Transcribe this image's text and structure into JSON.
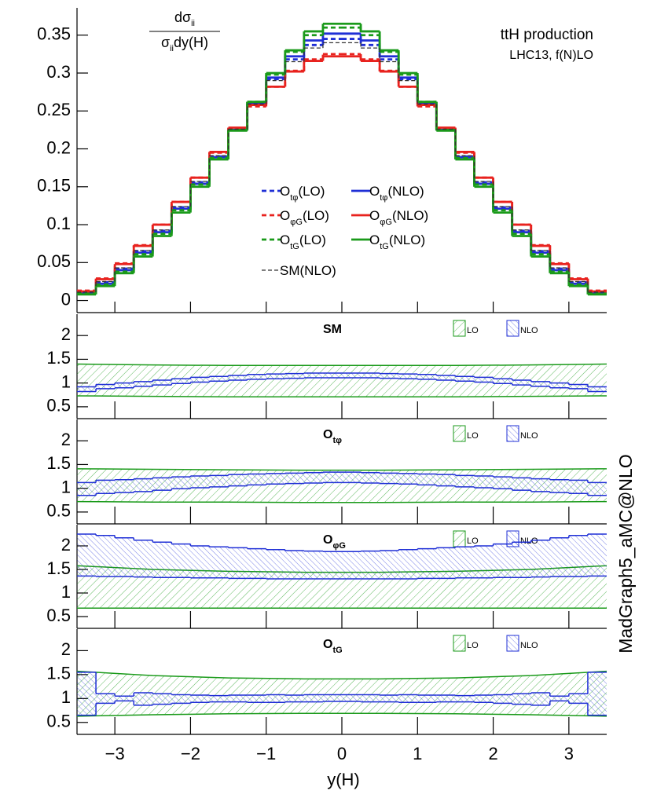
{
  "side_label": "MadGraph5_aMC@NLO",
  "chart_data": [
    {
      "type": "histogram",
      "ylabel": {
        "num": "dσ",
        "num_sub": "ii",
        "den": "σ",
        "den_sub": "ii",
        "den_rest": "dy(H)"
      },
      "annotations": [
        "ttH production",
        "LHC13, f(N)LO"
      ],
      "bins": [
        -3.5,
        -3.25,
        -3,
        -2.75,
        -2.5,
        -2.25,
        -2,
        -1.75,
        -1.5,
        -1.25,
        -1,
        -0.75,
        -0.5,
        -0.25,
        0,
        0.25,
        0.5,
        0.75,
        1,
        1.25,
        1.5,
        1.75,
        2,
        2.25,
        2.5,
        2.75,
        3,
        3.25,
        3.5
      ],
      "xlim": [
        -3.5,
        3.5
      ],
      "xticks": [
        -3,
        -2,
        -1,
        0,
        1,
        2,
        3
      ],
      "ylim": [
        -0.016,
        0.386
      ],
      "yticks": [
        0,
        0.05,
        0.1,
        0.15,
        0.2,
        0.25,
        0.3,
        0.35
      ],
      "series": [
        {
          "name": {
            "base": "O",
            "sub": "tφ",
            "rest": "(LO)"
          },
          "color": "#1f2fd6",
          "style": "dashed",
          "values": [
            0.011,
            0.024,
            0.042,
            0.065,
            0.092,
            0.123,
            0.156,
            0.19,
            0.226,
            0.259,
            0.292,
            0.318,
            0.337,
            0.345,
            0.345,
            0.337,
            0.318,
            0.292,
            0.259,
            0.226,
            0.19,
            0.156,
            0.123,
            0.092,
            0.065,
            0.042,
            0.024,
            0.011
          ]
        },
        {
          "name": {
            "base": "O",
            "sub": "tφ",
            "rest": "(NLO)"
          },
          "color": "#1f2fd6",
          "style": "solid",
          "values": [
            0.01,
            0.022,
            0.04,
            0.063,
            0.09,
            0.121,
            0.154,
            0.189,
            0.225,
            0.26,
            0.294,
            0.322,
            0.343,
            0.352,
            0.352,
            0.343,
            0.322,
            0.294,
            0.26,
            0.225,
            0.189,
            0.154,
            0.121,
            0.09,
            0.063,
            0.04,
            0.022,
            0.01
          ]
        },
        {
          "name": {
            "base": "O",
            "sub": "φG",
            "rest": "(LO)"
          },
          "color": "#e8221e",
          "style": "dashed",
          "values": [
            0.013,
            0.029,
            0.049,
            0.073,
            0.1,
            0.13,
            0.162,
            0.195,
            0.227,
            0.256,
            0.282,
            0.303,
            0.318,
            0.325,
            0.325,
            0.318,
            0.303,
            0.282,
            0.256,
            0.227,
            0.195,
            0.162,
            0.13,
            0.1,
            0.073,
            0.049,
            0.029,
            0.013
          ]
        },
        {
          "name": {
            "base": "O",
            "sub": "φG",
            "rest": "(NLO)"
          },
          "color": "#e8221e",
          "style": "solid",
          "values": [
            0.012,
            0.028,
            0.048,
            0.072,
            0.1,
            0.13,
            0.162,
            0.196,
            0.228,
            0.258,
            0.282,
            0.302,
            0.316,
            0.322,
            0.322,
            0.316,
            0.302,
            0.282,
            0.258,
            0.228,
            0.196,
            0.162,
            0.13,
            0.1,
            0.072,
            0.048,
            0.028,
            0.012
          ]
        },
        {
          "name": {
            "base": "O",
            "sub": "tG",
            "rest": "(LO)"
          },
          "color": "#1a9a1a",
          "style": "dashed",
          "values": [
            0.009,
            0.021,
            0.038,
            0.061,
            0.088,
            0.119,
            0.153,
            0.188,
            0.225,
            0.262,
            0.298,
            0.328,
            0.35,
            0.36,
            0.36,
            0.35,
            0.328,
            0.298,
            0.262,
            0.225,
            0.188,
            0.153,
            0.119,
            0.088,
            0.061,
            0.038,
            0.021,
            0.009
          ]
        },
        {
          "name": {
            "base": "O",
            "sub": "tG",
            "rest": "(NLO)"
          },
          "color": "#1a9a1a",
          "style": "solid",
          "values": [
            0.008,
            0.019,
            0.036,
            0.058,
            0.085,
            0.116,
            0.15,
            0.186,
            0.224,
            0.262,
            0.3,
            0.33,
            0.355,
            0.365,
            0.365,
            0.355,
            0.33,
            0.3,
            0.262,
            0.224,
            0.186,
            0.15,
            0.116,
            0.085,
            0.058,
            0.036,
            0.019,
            0.008
          ]
        },
        {
          "name": {
            "base": "SM(NLO)"
          },
          "color": "#333333",
          "style": "thin-dashed",
          "values": [
            0.011,
            0.025,
            0.043,
            0.066,
            0.093,
            0.124,
            0.157,
            0.191,
            0.226,
            0.259,
            0.29,
            0.315,
            0.333,
            0.34,
            0.34,
            0.333,
            0.315,
            0.29,
            0.259,
            0.226,
            0.191,
            0.157,
            0.124,
            0.093,
            0.066,
            0.043,
            0.025,
            0.011
          ]
        }
      ]
    },
    {
      "type": "band",
      "title": {
        "base": "SM"
      },
      "xlim": [
        -3.5,
        3.5
      ],
      "xticks": [
        -3,
        -2,
        -1,
        0,
        1,
        2,
        3
      ],
      "ylim": [
        0.25,
        2.45
      ],
      "yticks": [
        0.5,
        1,
        1.5,
        2
      ],
      "bands": [
        {
          "name": "LO",
          "color": "#1a9a1a",
          "x": [
            -3.5,
            -2.5,
            -1.5,
            -0.5,
            0.5,
            1.5,
            2.5,
            3.5
          ],
          "lower": [
            0.73,
            0.72,
            0.71,
            0.71,
            0.71,
            0.71,
            0.72,
            0.73
          ],
          "upper": [
            1.4,
            1.38,
            1.37,
            1.37,
            1.37,
            1.37,
            1.38,
            1.4
          ]
        },
        {
          "name": "NLO",
          "color": "#1f2fd6",
          "bins": [
            -3.5,
            -3.25,
            -3,
            -2.75,
            -2.5,
            -2.25,
            -2,
            -1.75,
            -1.5,
            -1.25,
            -1,
            -0.75,
            -0.5,
            -0.25,
            0,
            0.25,
            0.5,
            0.75,
            1,
            1.25,
            1.5,
            1.75,
            2,
            2.25,
            2.5,
            2.75,
            3,
            3.25,
            3.5
          ],
          "lower": [
            0.82,
            0.88,
            0.9,
            0.93,
            0.96,
            0.99,
            1.02,
            1.04,
            1.06,
            1.08,
            1.09,
            1.1,
            1.11,
            1.11,
            1.11,
            1.11,
            1.1,
            1.09,
            1.08,
            1.06,
            1.04,
            1.02,
            0.99,
            0.96,
            0.93,
            0.9,
            0.88,
            0.82
          ],
          "upper": [
            0.92,
            0.97,
            1.0,
            1.03,
            1.06,
            1.09,
            1.12,
            1.14,
            1.16,
            1.18,
            1.19,
            1.2,
            1.21,
            1.21,
            1.21,
            1.21,
            1.2,
            1.19,
            1.18,
            1.16,
            1.14,
            1.12,
            1.09,
            1.06,
            1.03,
            1.0,
            0.97,
            0.92
          ]
        }
      ]
    },
    {
      "type": "band",
      "title": {
        "base": "O",
        "sub": "tφ"
      },
      "xlim": [
        -3.5,
        3.5
      ],
      "xticks": [
        -3,
        -2,
        -1,
        0,
        1,
        2,
        3
      ],
      "ylim": [
        0.25,
        2.45
      ],
      "yticks": [
        0.5,
        1,
        1.5,
        2
      ],
      "bands": [
        {
          "name": "LO",
          "color": "#1a9a1a",
          "x": [
            -3.5,
            -2.5,
            -1.5,
            -0.5,
            0.5,
            1.5,
            2.5,
            3.5
          ],
          "lower": [
            0.72,
            0.71,
            0.71,
            0.7,
            0.7,
            0.71,
            0.71,
            0.72
          ],
          "upper": [
            1.41,
            1.4,
            1.39,
            1.38,
            1.38,
            1.39,
            1.4,
            1.41
          ]
        },
        {
          "name": "NLO",
          "color": "#1f2fd6",
          "bins": [
            -3.5,
            -3.25,
            -3,
            -2.75,
            -2.5,
            -2.25,
            -2,
            -1.75,
            -1.5,
            -1.25,
            -1,
            -0.75,
            -0.5,
            -0.25,
            0,
            0.25,
            0.5,
            0.75,
            1,
            1.25,
            1.5,
            1.75,
            2,
            2.25,
            2.5,
            2.75,
            3,
            3.25,
            3.5
          ],
          "lower": [
            0.85,
            0.89,
            0.91,
            0.93,
            0.96,
            0.99,
            1.01,
            1.03,
            1.05,
            1.07,
            1.09,
            1.1,
            1.11,
            1.12,
            1.12,
            1.11,
            1.1,
            1.09,
            1.07,
            1.05,
            1.03,
            1.01,
            0.99,
            0.96,
            0.93,
            0.91,
            0.89,
            0.85
          ],
          "upper": [
            1.12,
            1.17,
            1.18,
            1.2,
            1.22,
            1.24,
            1.26,
            1.27,
            1.29,
            1.3,
            1.31,
            1.32,
            1.33,
            1.34,
            1.34,
            1.33,
            1.32,
            1.31,
            1.3,
            1.29,
            1.27,
            1.26,
            1.24,
            1.22,
            1.2,
            1.18,
            1.17,
            1.12
          ]
        }
      ]
    },
    {
      "type": "band",
      "title": {
        "base": "O",
        "sub": "φG"
      },
      "xlim": [
        -3.5,
        3.5
      ],
      "xticks": [
        -3,
        -2,
        -1,
        0,
        1,
        2,
        3
      ],
      "ylim": [
        0.25,
        2.45
      ],
      "yticks": [
        0.5,
        1,
        1.5,
        2
      ],
      "bands": [
        {
          "name": "LO",
          "color": "#1a9a1a",
          "x": [
            -3.5,
            -2.5,
            -1.5,
            -0.5,
            0.5,
            1.5,
            2.5,
            3.5
          ],
          "lower": [
            0.68,
            0.68,
            0.68,
            0.68,
            0.68,
            0.68,
            0.68,
            0.68
          ],
          "upper": [
            1.58,
            1.5,
            1.46,
            1.44,
            1.44,
            1.46,
            1.5,
            1.58
          ]
        },
        {
          "name": "NLO",
          "color": "#1f2fd6",
          "bins": [
            -3.5,
            -3.25,
            -3,
            -2.75,
            -2.5,
            -2.25,
            -2,
            -1.75,
            -1.5,
            -1.25,
            -1,
            -0.75,
            -0.5,
            -0.25,
            0,
            0.25,
            0.5,
            0.75,
            1,
            1.25,
            1.5,
            1.75,
            2,
            2.25,
            2.5,
            2.75,
            3,
            3.25,
            3.5
          ],
          "lower": [
            1.36,
            1.35,
            1.35,
            1.34,
            1.33,
            1.33,
            1.32,
            1.32,
            1.31,
            1.31,
            1.3,
            1.3,
            1.3,
            1.3,
            1.3,
            1.3,
            1.3,
            1.3,
            1.31,
            1.31,
            1.32,
            1.32,
            1.33,
            1.33,
            1.34,
            1.35,
            1.35,
            1.36
          ],
          "upper": [
            2.25,
            2.22,
            2.17,
            2.12,
            2.08,
            2.04,
            2.0,
            1.98,
            1.96,
            1.94,
            1.92,
            1.9,
            1.89,
            1.88,
            1.88,
            1.89,
            1.9,
            1.92,
            1.94,
            1.96,
            1.98,
            2.0,
            2.04,
            2.08,
            2.12,
            2.17,
            2.22,
            2.25
          ]
        }
      ]
    },
    {
      "type": "band",
      "title": {
        "base": "O",
        "sub": "tG"
      },
      "xlabel": "y(H)",
      "xlim": [
        -3.5,
        3.5
      ],
      "xticks": [
        {
          "value": -3,
          "label": "−3"
        },
        {
          "value": -2,
          "label": "−2"
        },
        {
          "value": -1,
          "label": "−1"
        },
        0,
        1,
        2,
        3
      ],
      "ylim": [
        0.25,
        2.45
      ],
      "yticks": [
        0.5,
        1,
        1.5,
        2
      ],
      "bands": [
        {
          "name": "LO",
          "color": "#1a9a1a",
          "x": [
            -3.5,
            -2.5,
            -1.5,
            -0.5,
            0.5,
            1.5,
            2.5,
            3.5
          ],
          "lower": [
            0.63,
            0.66,
            0.68,
            0.69,
            0.69,
            0.68,
            0.66,
            0.63
          ],
          "upper": [
            1.57,
            1.48,
            1.43,
            1.41,
            1.41,
            1.43,
            1.48,
            1.57
          ]
        },
        {
          "name": "NLO",
          "color": "#1f2fd6",
          "bins": [
            -3.5,
            -3.25,
            -3,
            -2.75,
            -2.5,
            -2.25,
            -2,
            -1.75,
            -1.5,
            -1.25,
            -1,
            -0.75,
            -0.5,
            -0.25,
            0,
            0.25,
            0.5,
            0.75,
            1,
            1.25,
            1.5,
            1.75,
            2,
            2.25,
            2.5,
            2.75,
            3,
            3.25,
            3.5
          ],
          "lower": [
            0.65,
            0.9,
            0.95,
            0.86,
            0.88,
            0.9,
            0.92,
            0.93,
            0.93,
            0.92,
            0.92,
            0.93,
            0.93,
            0.94,
            0.94,
            0.93,
            0.93,
            0.92,
            0.92,
            0.93,
            0.93,
            0.92,
            0.9,
            0.88,
            0.86,
            0.95,
            0.9,
            0.65
          ],
          "upper": [
            1.55,
            1.1,
            1.05,
            1.12,
            1.1,
            1.08,
            1.07,
            1.06,
            1.07,
            1.07,
            1.08,
            1.07,
            1.08,
            1.08,
            1.08,
            1.08,
            1.07,
            1.08,
            1.07,
            1.07,
            1.06,
            1.07,
            1.08,
            1.1,
            1.12,
            1.05,
            1.1,
            1.55
          ]
        }
      ]
    }
  ]
}
